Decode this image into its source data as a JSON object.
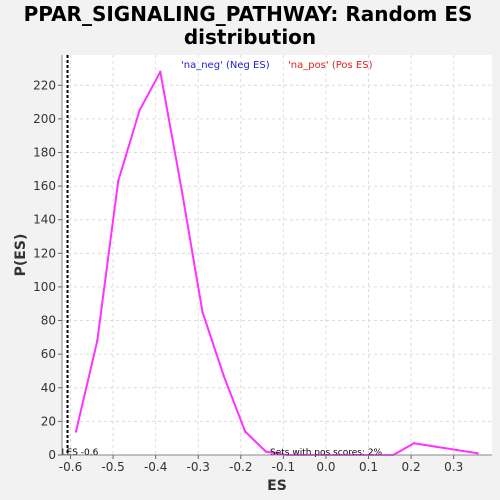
{
  "chart_data": {
    "type": "line",
    "title_line1": "PPAR_SIGNALING_PATHWAY: Random ES",
    "title_line2": "distribution",
    "xlabel": "ES",
    "ylabel": "P(ES)",
    "xlim": [
      -0.62,
      0.39
    ],
    "ylim": [
      0,
      238
    ],
    "x_ticks": [
      -0.6,
      -0.5,
      -0.4,
      -0.3,
      -0.2,
      -0.1,
      0.0,
      0.1,
      0.2,
      0.3
    ],
    "x_tick_labels": [
      "-0.6",
      "-0.5",
      "-0.4",
      "-0.3",
      "-0.2",
      "-0.1",
      "0.0",
      "0.1",
      "0.2",
      "0.3"
    ],
    "y_ticks": [
      0,
      20,
      40,
      60,
      80,
      100,
      120,
      140,
      160,
      180,
      200,
      220
    ],
    "y_tick_labels": [
      "0",
      "20",
      "40",
      "60",
      "80",
      "100",
      "120",
      "140",
      "160",
      "180",
      "200",
      "220"
    ],
    "grid": true,
    "legend": [
      {
        "label": "'na_neg' (Neg ES)",
        "color": "#2222cc"
      },
      {
        "label": "'na_pos' (Pos ES)",
        "color": "#dd2222"
      }
    ],
    "series": [
      {
        "color": "#ff33ff",
        "x": [
          -0.587,
          -0.537,
          -0.488,
          -0.438,
          -0.389,
          -0.339,
          -0.29,
          -0.24,
          -0.19,
          -0.141,
          -0.092,
          -0.042,
          0.008,
          0.058,
          0.108,
          0.158,
          0.207,
          0.257,
          0.307,
          0.356
        ],
        "y": [
          14,
          68,
          163,
          205,
          228,
          158,
          85,
          47,
          14,
          2,
          0,
          0,
          0,
          0,
          0,
          0,
          7,
          5,
          3,
          1
        ]
      }
    ],
    "marker_line": {
      "x": -0.607,
      "label": "LES -0.6"
    },
    "annotation": "Sets with pos scores: 2%"
  }
}
